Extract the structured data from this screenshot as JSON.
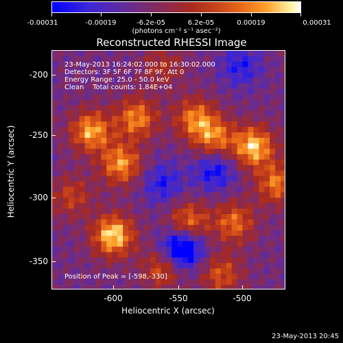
{
  "colorbar": {
    "tick_labels": [
      "-0.00031",
      "-0.00019",
      "-6.2e-05",
      "6.2e-05",
      "0.00019",
      "0.00031"
    ],
    "unit": "(photons cm⁻² s⁻¹ asec⁻²)",
    "colors": [
      "#0000ff",
      "#5a2aa8",
      "#8c2a4e",
      "#c8421a",
      "#ffa02a",
      "#ffffff"
    ]
  },
  "chart_data": {
    "type": "heatmap",
    "title": "Reconstructed RHESSI Image",
    "xlabel": "Heliocentric X (arcsec)",
    "ylabel": "Heliocentric Y (arcsec)",
    "xlim": [
      -645,
      -465
    ],
    "ylim": [
      -372,
      -188
    ],
    "x_ticks": [
      -600,
      -550,
      -500
    ],
    "y_ticks": [
      -200,
      -250,
      -300,
      -350
    ],
    "x_tick_labels": [
      "-600",
      "-550",
      "-500"
    ],
    "y_tick_labels": [
      "-200",
      "-250",
      "-300",
      "-350"
    ],
    "hot_spots": [
      {
        "x": -598,
        "y": -330,
        "level": 1.0
      },
      {
        "x": -490,
        "y": -262,
        "level": 0.95
      },
      {
        "x": -592,
        "y": -275,
        "level": 0.8
      },
      {
        "x": -615,
        "y": -250,
        "level": 0.85
      },
      {
        "x": -580,
        "y": -240,
        "level": 0.75
      },
      {
        "x": -535,
        "y": -240,
        "level": 0.7
      },
      {
        "x": -520,
        "y": -255,
        "level": 0.7
      },
      {
        "x": -540,
        "y": -320,
        "level": 0.7
      },
      {
        "x": -505,
        "y": -320,
        "level": 0.65
      },
      {
        "x": -472,
        "y": -290,
        "level": 0.7
      },
      {
        "x": -560,
        "y": -355,
        "level": 0.55
      },
      {
        "x": -515,
        "y": -360,
        "level": 0.55
      },
      {
        "x": -630,
        "y": -300,
        "level": 0.45
      },
      {
        "x": -560,
        "y": -200,
        "level": 0.35
      }
    ],
    "cold_spots": [
      {
        "x": -545,
        "y": -340,
        "level": -1.0
      },
      {
        "x": -520,
        "y": -280,
        "level": -0.55
      },
      {
        "x": -560,
        "y": -290,
        "level": -0.45
      },
      {
        "x": -500,
        "y": -200,
        "level": -0.45
      }
    ]
  },
  "annotations": {
    "time_range": "23-May-2013 16:24:02.000 to 16:30:02.000",
    "detectors": "Detectors: 3F 5F 6F 7F 8F 9F, Att 0",
    "energy": "Energy Range: 25.0 - 50.0 keV",
    "clean": "Clean    Total counts: 1.84E+04",
    "peak": "Position of Peak = [-598,-330]"
  },
  "timestamp": "23-May-2013 20:45"
}
